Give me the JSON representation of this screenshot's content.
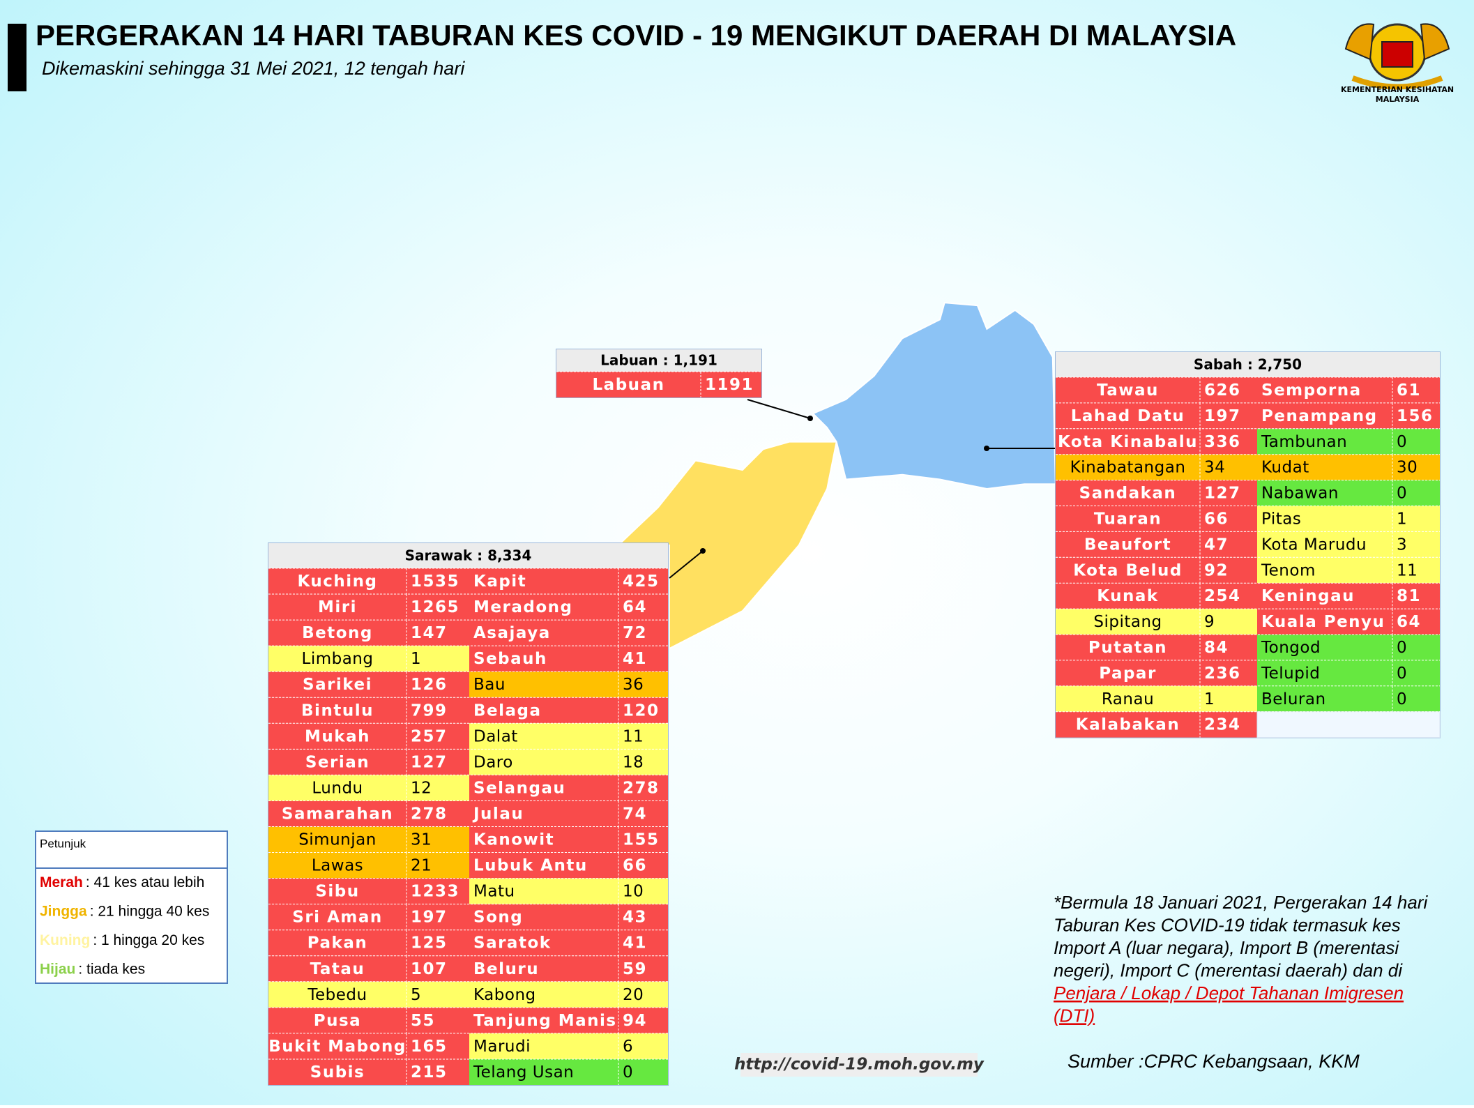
{
  "header": {
    "title": "PERGERAKAN 14 HARI TABURAN KES COVID - 19 MENGIKUT DAERAH DI MALAYSIA",
    "subtitle": "Dikemaskini sehingga 31 Mei 2021, 12 tengah hari",
    "logo_text": [
      "KEMENTERIAN KESIHATAN",
      "MALAYSIA"
    ]
  },
  "tables": {
    "labuan": {
      "title": "Labuan : 1,191",
      "rows": [
        [
          "Labuan",
          1191
        ]
      ]
    },
    "sabah": {
      "title": "Sabah : 2,750",
      "rows": [
        [
          "Tawau",
          626,
          "Semporna",
          61
        ],
        [
          "Lahad Datu",
          197,
          "Penampang",
          156
        ],
        [
          "Kota Kinabalu",
          336,
          "Tambunan",
          0
        ],
        [
          "Kinabatangan",
          34,
          "Kudat",
          30
        ],
        [
          "Sandakan",
          127,
          "Nabawan",
          0
        ],
        [
          "Tuaran",
          66,
          "Pitas",
          1
        ],
        [
          "Beaufort",
          47,
          "Kota Marudu",
          3
        ],
        [
          "Kota Belud",
          92,
          "Tenom",
          11
        ],
        [
          "Kunak",
          254,
          "Keningau",
          81
        ],
        [
          "Sipitang",
          9,
          "Kuala Penyu",
          64
        ],
        [
          "Putatan",
          84,
          "Tongod",
          0
        ],
        [
          "Papar",
          236,
          "Telupid",
          0
        ],
        [
          "Ranau",
          1,
          "Beluran",
          0
        ],
        [
          "Kalabakan",
          234
        ]
      ]
    },
    "sarawak": {
      "title": "Sarawak : 8,334",
      "rows": [
        [
          "Kuching",
          1535,
          "Kapit",
          425
        ],
        [
          "Miri",
          1265,
          "Meradong",
          64
        ],
        [
          "Betong",
          147,
          "Asajaya",
          72
        ],
        [
          "Limbang",
          1,
          "Sebauh",
          41
        ],
        [
          "Sarikei",
          126,
          "Bau",
          36
        ],
        [
          "Bintulu",
          799,
          "Belaga",
          120
        ],
        [
          "Mukah",
          257,
          "Dalat",
          11
        ],
        [
          "Serian",
          127,
          "Daro",
          18
        ],
        [
          "Lundu",
          12,
          "Selangau",
          278
        ],
        [
          "Samarahan",
          278,
          "Julau",
          74
        ],
        [
          "Simunjan",
          31,
          "Kanowit",
          155
        ],
        [
          "Lawas",
          21,
          "Lubuk Antu",
          66
        ],
        [
          "Sibu",
          1233,
          "Matu",
          10
        ],
        [
          "Sri Aman",
          197,
          "Song",
          43
        ],
        [
          "Pakan",
          125,
          "Saratok",
          41
        ],
        [
          "Tatau",
          107,
          "Beluru",
          59
        ],
        [
          "Tebedu",
          5,
          "Kabong",
          20
        ],
        [
          "Pusa",
          55,
          "Tanjung Manis",
          94
        ],
        [
          "Bukit Mabong",
          165,
          "Marudi",
          6
        ],
        [
          "Subis",
          215,
          "Telang Usan",
          0
        ]
      ]
    }
  },
  "legend": {
    "title": "Petunjuk",
    "items": [
      {
        "label": "Merah",
        "text": ": 41 kes atau lebih"
      },
      {
        "label": "Jingga",
        "text": ": 21 hingga 40 kes"
      },
      {
        "label": "Kuning",
        "text": ": 1 hingga 20 kes"
      },
      {
        "label": "Hijau",
        "text": ": tiada kes"
      }
    ]
  },
  "note": {
    "lines": [
      "*Bermula 18 Januari 2021, Pergerakan 14 hari",
      "Taburan Kes COVID-19 tidak termasuk kes",
      "Import A (luar negara), Import B (merentasi",
      "negeri), Import C (merentasi daerah) dan di"
    ],
    "link_lines": [
      "Penjara / Lokap / Depot Tahanan Imigresen",
      "(DTI)"
    ]
  },
  "source": "Sumber :CPRC Kebangsaan,  KKM",
  "url": "http://covid-19.moh.gov.my"
}
